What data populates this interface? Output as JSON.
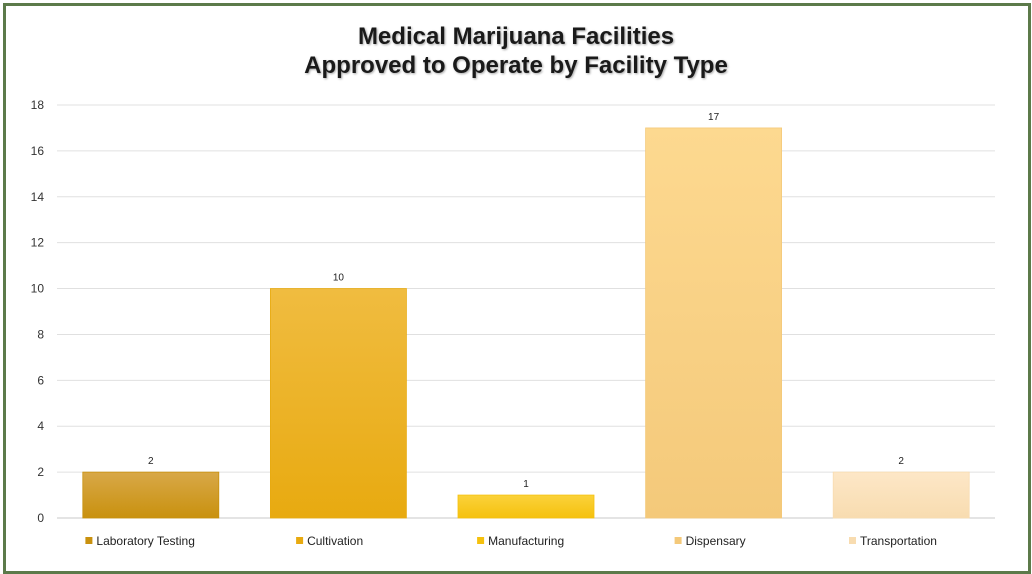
{
  "chart_data": {
    "type": "bar",
    "title_line1": "Medical Marijuana Facilities",
    "title_line2": "Approved to Operate by Facility Type",
    "categories": [
      "Laboratory Testing",
      "Cultivation",
      "Manufacturing",
      "Dispensary",
      "Transportation"
    ],
    "values": [
      2,
      10,
      1,
      17,
      2
    ],
    "data_labels": [
      "2",
      "10",
      "1",
      "17",
      "2"
    ],
    "colors": [
      "#c9910e",
      "#e8aa10",
      "#f5c10e",
      "#f4c97a",
      "#f8dcb0"
    ],
    "colors_light": [
      "#d8a848",
      "#f0bc40",
      "#fbd23a",
      "#fdd990",
      "#fde7c7"
    ],
    "ylim": [
      0,
      18
    ],
    "yticks": [
      "0",
      "2",
      "4",
      "6",
      "8",
      "10",
      "12",
      "14",
      "16",
      "18"
    ],
    "grid": true,
    "legend_position": "bottom"
  },
  "colors": {
    "border": "#5c7a4a",
    "gridline": "#e0e0e0"
  }
}
